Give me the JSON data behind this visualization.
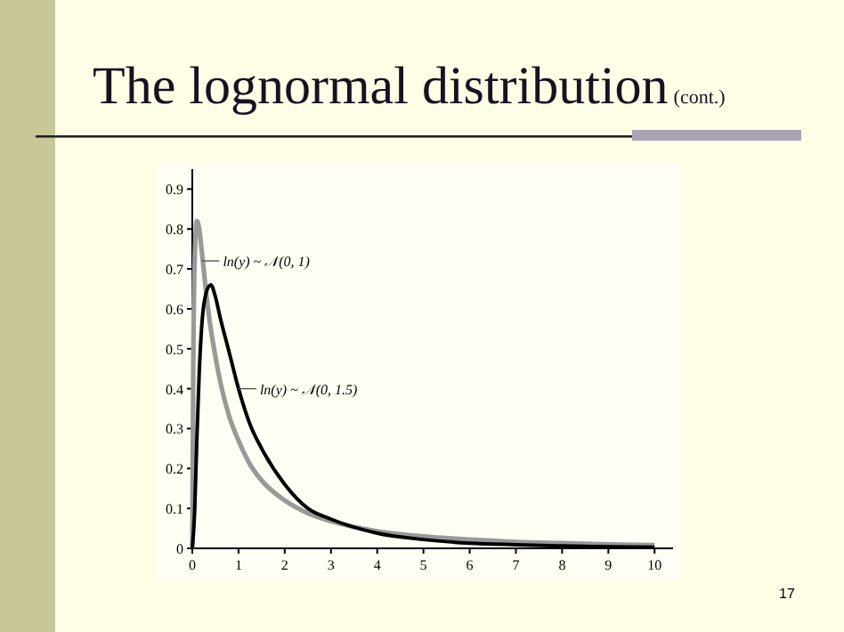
{
  "chart_data": {
    "type": "line",
    "title": "The lognormal distribution",
    "subtitle": "(cont.)",
    "series": [
      {
        "color": "#999999",
        "x": [
          0,
          0.02,
          0.05,
          0.1,
          0.15,
          0.2,
          0.3,
          0.4,
          0.5,
          0.6,
          0.8,
          1,
          1.25,
          1.5,
          2,
          2.5,
          3,
          4,
          5,
          6,
          7,
          8,
          9,
          10
        ],
        "values": [
          0,
          0.44,
          0.72,
          0.82,
          0.8,
          0.75,
          0.64,
          0.55,
          0.48,
          0.42,
          0.33,
          0.27,
          0.21,
          0.17,
          0.12,
          0.088,
          0.068,
          0.043,
          0.03,
          0.022,
          0.016,
          0.013,
          0.01,
          0.008
        ]
      },
      {
        "color": "#000000",
        "x": [
          0,
          0.05,
          0.1,
          0.15,
          0.2,
          0.3,
          0.4,
          0.5,
          0.6,
          0.8,
          1,
          1.25,
          1.5,
          2,
          2.5,
          3,
          4,
          5,
          6,
          7,
          8,
          9,
          10
        ],
        "values": [
          0,
          0.09,
          0.28,
          0.44,
          0.55,
          0.64,
          0.66,
          0.63,
          0.58,
          0.49,
          0.4,
          0.31,
          0.25,
          0.16,
          0.1,
          0.073,
          0.038,
          0.022,
          0.013,
          0.009,
          0.006,
          0.004,
          0.003
        ]
      }
    ],
    "xlim": [
      0,
      10.4
    ],
    "xticks": [
      0,
      1,
      2,
      3,
      4,
      5,
      6,
      7,
      8,
      9,
      10
    ],
    "ylim": [
      0,
      0.95
    ],
    "yticks": [
      0,
      0.1,
      0.2,
      0.3,
      0.4,
      0.5,
      0.6,
      0.7,
      0.8,
      0.9
    ],
    "grid": false,
    "line_style": "solid",
    "marker": "none",
    "annotations": [
      {
        "text": "ln(y) ~ 𝒩(0, 1)",
        "x": 0.2,
        "y": 0.72
      },
      {
        "text": "ln(y) ~ 𝒩(0, 1.5)",
        "x": 1,
        "y": 0.4
      },
      "17"
    ]
  }
}
